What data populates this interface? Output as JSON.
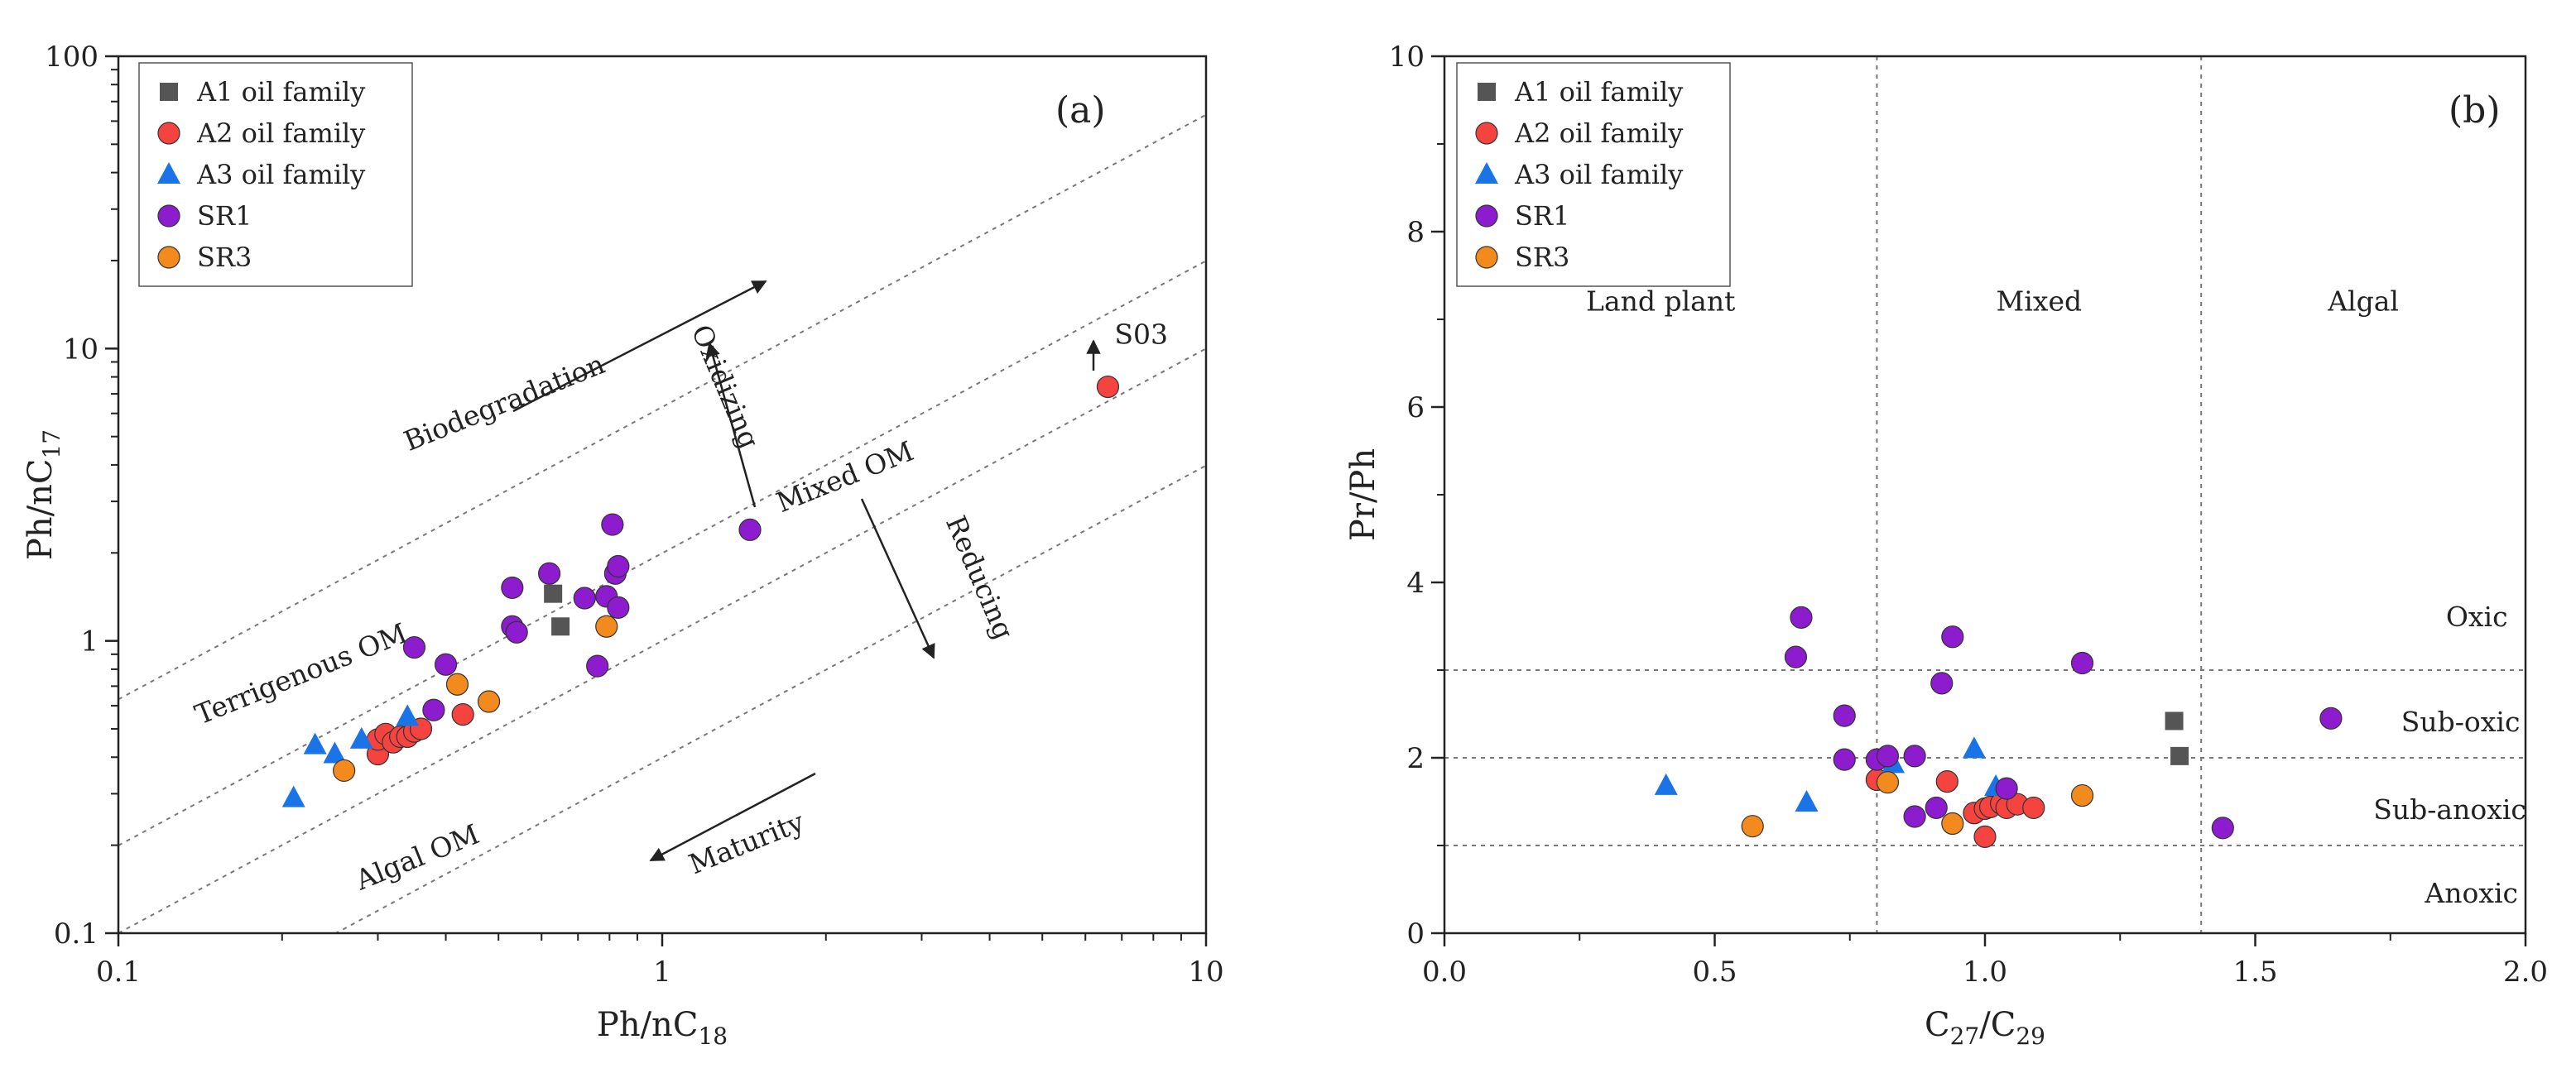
{
  "colors": {
    "A1 oil family": "#555555",
    "A2 oil family": "#f5433f",
    "A3 oil family": "#1a74e8",
    "SR1": "#8e1ccf",
    "SR3": "#f28a1e"
  },
  "chart_data": [
    {
      "type": "scatter",
      "panel_label": "(a)",
      "xlabel": {
        "main": "Ph/nC",
        "sub": "18"
      },
      "ylabel": {
        "main": "Ph/nC",
        "sub": "17"
      },
      "x_scale": "log",
      "y_scale": "log",
      "xlim": [
        0.1,
        10
      ],
      "ylim": [
        0.1,
        100
      ],
      "xticks": [
        "0.1",
        "1",
        "10"
      ],
      "yticks": [
        "0.1",
        "1",
        "10",
        "100"
      ],
      "legend_position": "top-left",
      "series": [
        {
          "name": "A1 oil family",
          "marker": "square",
          "points": [
            [
              0.63,
              1.45
            ],
            [
              0.65,
              1.12
            ]
          ]
        },
        {
          "name": "A2 oil family",
          "marker": "circle",
          "points": [
            [
              0.3,
              0.41
            ],
            [
              0.3,
              0.46
            ],
            [
              0.31,
              0.48
            ],
            [
              0.32,
              0.45
            ],
            [
              0.33,
              0.47
            ],
            [
              0.34,
              0.47
            ],
            [
              0.35,
              0.49
            ],
            [
              0.36,
              0.5
            ],
            [
              0.43,
              0.56
            ],
            [
              6.6,
              7.4
            ]
          ]
        },
        {
          "name": "A3 oil family",
          "marker": "triangle",
          "points": [
            [
              0.21,
              0.29
            ],
            [
              0.23,
              0.44
            ],
            [
              0.25,
              0.41
            ],
            [
              0.28,
              0.46
            ],
            [
              0.34,
              0.55
            ]
          ]
        },
        {
          "name": "SR1",
          "marker": "circle",
          "points": [
            [
              0.35,
              0.95
            ],
            [
              0.38,
              0.58
            ],
            [
              0.4,
              0.83
            ],
            [
              0.53,
              1.52
            ],
            [
              0.53,
              1.12
            ],
            [
              0.54,
              1.07
            ],
            [
              0.62,
              1.7
            ],
            [
              0.72,
              1.4
            ],
            [
              0.76,
              0.82
            ],
            [
              0.79,
              1.42
            ],
            [
              0.81,
              2.5
            ],
            [
              0.82,
              1.7
            ],
            [
              0.83,
              1.8
            ],
            [
              0.83,
              1.3
            ],
            [
              1.45,
              2.4
            ]
          ]
        },
        {
          "name": "SR3",
          "marker": "circle",
          "points": [
            [
              0.26,
              0.36
            ],
            [
              0.42,
              0.71
            ],
            [
              0.48,
              0.62
            ],
            [
              0.79,
              1.12
            ]
          ]
        }
      ],
      "diagonal_lines_log_offsets": [
        0.8,
        0.3,
        0.0,
        -0.4
      ],
      "annotations": [
        {
          "text": "Biodegradation",
          "x": 0.52,
          "y": 6.1,
          "rotate": -22
        },
        {
          "text": "Oxidizing",
          "x": 1.26,
          "y": 7.2,
          "rotate": 67
        },
        {
          "text": "Mixed OM",
          "x": 2.2,
          "y": 3.4,
          "rotate": -22
        },
        {
          "text": "Reducing",
          "x": 3.7,
          "y": 1.6,
          "rotate": 67
        },
        {
          "text": "Terrigenous OM",
          "x": 0.22,
          "y": 0.72,
          "rotate": -22
        },
        {
          "text": "Algal OM",
          "x": 0.36,
          "y": 0.17,
          "rotate": -22
        },
        {
          "text": "Maturity",
          "x": 1.45,
          "y": 0.19,
          "rotate": -22
        },
        {
          "text": "S03",
          "x": 7.6,
          "y": 10.4,
          "rotate": 0
        }
      ]
    },
    {
      "type": "scatter",
      "panel_label": "(b)",
      "xlabel": {
        "main": "C",
        "sub": "27",
        "mid": "/C",
        "sub2": "29"
      },
      "ylabel": {
        "main": "Pr/Ph"
      },
      "xlim": [
        0,
        2
      ],
      "ylim": [
        0,
        10
      ],
      "xticks": [
        "0.0",
        "0.5",
        "1.0",
        "1.5",
        "2.0"
      ],
      "yticks": [
        "0",
        "2",
        "4",
        "6",
        "8",
        "10"
      ],
      "legend_position": "top-left",
      "vertical_lines": [
        0.8,
        1.4
      ],
      "horizontal_lines": [
        1,
        2,
        3
      ],
      "region_labels": [
        {
          "text": "Land plant",
          "x": 0.4,
          "y": 7.1
        },
        {
          "text": "Mixed",
          "x": 1.1,
          "y": 7.1
        },
        {
          "text": "Algal",
          "x": 1.7,
          "y": 7.1
        },
        {
          "text": "Oxic",
          "x": 1.91,
          "y": 3.5
        },
        {
          "text": "Sub-oxic",
          "x": 1.88,
          "y": 2.3
        },
        {
          "text": "Sub-anoxic",
          "x": 1.86,
          "y": 1.3
        },
        {
          "text": "Anoxic",
          "x": 1.9,
          "y": 0.35
        }
      ],
      "series": [
        {
          "name": "A1 oil family",
          "marker": "square",
          "points": [
            [
              1.35,
              2.42
            ],
            [
              1.36,
              2.02
            ]
          ]
        },
        {
          "name": "A2 oil family",
          "marker": "circle",
          "points": [
            [
              0.8,
              1.75
            ],
            [
              0.93,
              1.73
            ],
            [
              0.98,
              1.37
            ],
            [
              1.0,
              1.42
            ],
            [
              1.01,
              1.44
            ],
            [
              1.03,
              1.48
            ],
            [
              1.04,
              1.43
            ],
            [
              1.06,
              1.47
            ],
            [
              1.09,
              1.43
            ],
            [
              1.0,
              1.1
            ]
          ]
        },
        {
          "name": "A3 oil family",
          "marker": "triangle",
          "points": [
            [
              0.41,
              1.68
            ],
            [
              0.67,
              1.49
            ],
            [
              0.83,
              1.93
            ],
            [
              0.98,
              2.1
            ],
            [
              1.02,
              1.67
            ]
          ]
        },
        {
          "name": "SR1",
          "marker": "circle",
          "points": [
            [
              0.65,
              3.15
            ],
            [
              0.66,
              3.6
            ],
            [
              0.74,
              2.48
            ],
            [
              0.74,
              1.98
            ],
            [
              0.8,
              1.98
            ],
            [
              0.82,
              2.02
            ],
            [
              0.87,
              2.02
            ],
            [
              0.87,
              1.33
            ],
            [
              0.91,
              1.43
            ],
            [
              0.92,
              2.85
            ],
            [
              0.94,
              3.38
            ],
            [
              1.04,
              1.65
            ],
            [
              1.18,
              3.08
            ],
            [
              1.44,
              1.2
            ],
            [
              1.64,
              2.45
            ]
          ]
        },
        {
          "name": "SR3",
          "marker": "circle",
          "points": [
            [
              0.57,
              1.22
            ],
            [
              0.82,
              1.72
            ],
            [
              0.94,
              1.25
            ],
            [
              1.18,
              1.57
            ]
          ]
        }
      ]
    }
  ]
}
